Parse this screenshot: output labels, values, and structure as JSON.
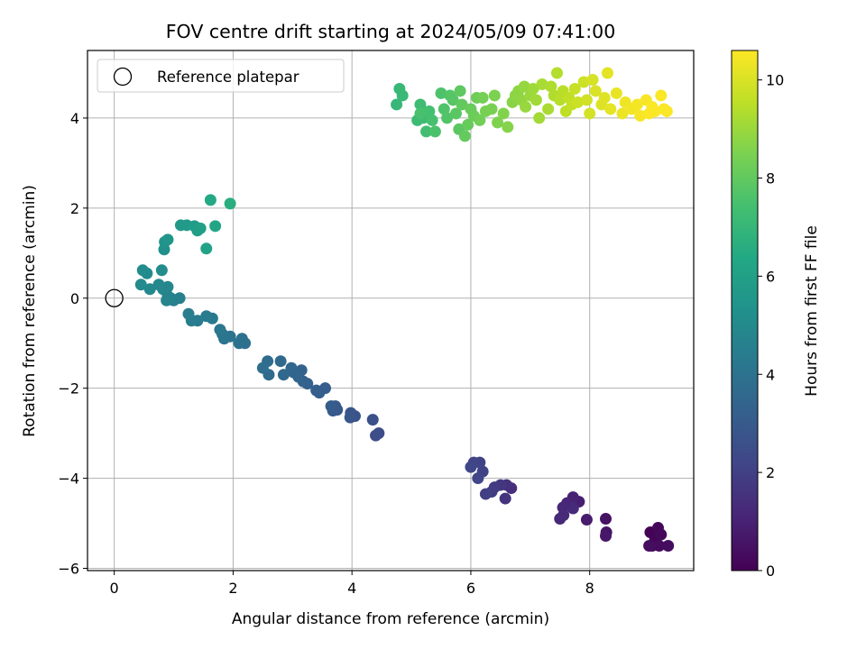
{
  "chart_data": {
    "type": "scatter",
    "title": "FOV centre drift starting at 2024/05/09 07:41:00",
    "xlabel": "Angular distance from reference (arcmin)",
    "ylabel": "Rotation from reference (arcmin)",
    "xlim": [
      -0.45,
      9.75
    ],
    "ylim": [
      -6.05,
      5.5
    ],
    "xticks": [
      0,
      2,
      4,
      6,
      8
    ],
    "yticks": [
      -6,
      -4,
      -2,
      0,
      2,
      4
    ],
    "grid": true,
    "legend": {
      "placement": "top-left",
      "entries": [
        "Reference platepar"
      ]
    },
    "reference_point": {
      "x": 0,
      "y": 0,
      "label": "Reference platepar"
    },
    "colorbar": {
      "label": "Hours from first FF file",
      "colormap": "viridis",
      "range": [
        0,
        10.6
      ],
      "ticks": [
        0,
        2,
        4,
        6,
        8,
        10
      ]
    },
    "series": [
      {
        "columns": [
          "x",
          "y",
          "hours"
        ],
        "points": [
          [
            9.02,
            -5.2,
            0.05
          ],
          [
            9.1,
            -5.35,
            0.1
          ],
          [
            9.15,
            -5.1,
            0.15
          ],
          [
            9.05,
            -5.5,
            0.2
          ],
          [
            9.2,
            -5.25,
            0.25
          ],
          [
            9.17,
            -5.5,
            0.3
          ],
          [
            9.32,
            -5.5,
            0.35
          ],
          [
            9.0,
            -5.5,
            0.4
          ],
          [
            8.27,
            -4.9,
            0.5
          ],
          [
            8.28,
            -5.2,
            0.6
          ],
          [
            8.27,
            -5.28,
            0.7
          ],
          [
            7.95,
            -4.92,
            0.8
          ],
          [
            7.82,
            -4.52,
            0.9
          ],
          [
            7.72,
            -4.42,
            1.0
          ],
          [
            7.7,
            -4.6,
            1.05
          ],
          [
            7.62,
            -4.55,
            1.1
          ],
          [
            7.55,
            -4.65,
            1.15
          ],
          [
            7.5,
            -4.9,
            1.2
          ],
          [
            7.56,
            -4.82,
            1.25
          ],
          [
            7.72,
            -4.67,
            1.3
          ],
          [
            6.68,
            -4.22,
            1.4
          ],
          [
            6.6,
            -4.15,
            1.5
          ],
          [
            6.58,
            -4.45,
            1.6
          ],
          [
            6.5,
            -4.15,
            1.7
          ],
          [
            6.4,
            -4.2,
            1.8
          ],
          [
            6.35,
            -4.3,
            1.9
          ],
          [
            6.25,
            -4.35,
            2.0
          ],
          [
            6.2,
            -3.85,
            2.05
          ],
          [
            6.15,
            -3.65,
            2.1
          ],
          [
            6.05,
            -3.65,
            2.15
          ],
          [
            6.12,
            -4.0,
            2.2
          ],
          [
            6.0,
            -3.75,
            2.25
          ],
          [
            4.45,
            -3.0,
            2.4
          ],
          [
            4.4,
            -3.05,
            2.5
          ],
          [
            4.35,
            -2.7,
            2.6
          ],
          [
            4.05,
            -2.62,
            2.7
          ],
          [
            3.98,
            -2.55,
            2.8
          ],
          [
            3.97,
            -2.65,
            2.85
          ],
          [
            3.75,
            -2.48,
            2.9
          ],
          [
            3.72,
            -2.4,
            2.95
          ],
          [
            3.68,
            -2.5,
            3.0
          ],
          [
            3.65,
            -2.4,
            3.05
          ],
          [
            3.55,
            -2.0,
            3.1
          ],
          [
            3.45,
            -2.1,
            3.15
          ],
          [
            3.4,
            -2.05,
            3.2
          ],
          [
            3.25,
            -1.9,
            3.25
          ],
          [
            3.18,
            -1.85,
            3.3
          ],
          [
            3.15,
            -1.6,
            3.35
          ],
          [
            3.1,
            -1.75,
            3.4
          ],
          [
            3.02,
            -1.65,
            3.45
          ],
          [
            2.98,
            -1.55,
            3.5
          ],
          [
            2.85,
            -1.7,
            3.55
          ],
          [
            2.8,
            -1.4,
            3.6
          ],
          [
            2.6,
            -1.7,
            3.7
          ],
          [
            2.58,
            -1.4,
            3.75
          ],
          [
            2.5,
            -1.55,
            3.8
          ],
          [
            2.2,
            -1.0,
            3.9
          ],
          [
            2.15,
            -0.9,
            3.95
          ],
          [
            2.1,
            -1.0,
            4.0
          ],
          [
            1.95,
            -0.85,
            4.05
          ],
          [
            1.85,
            -0.9,
            4.1
          ],
          [
            1.82,
            -0.8,
            4.15
          ],
          [
            1.78,
            -0.7,
            4.2
          ],
          [
            1.65,
            -0.45,
            4.3
          ],
          [
            1.55,
            -0.4,
            4.35
          ],
          [
            1.4,
            -0.5,
            4.4
          ],
          [
            1.3,
            -0.5,
            4.45
          ],
          [
            1.25,
            -0.35,
            4.5
          ],
          [
            1.1,
            0.0,
            4.55
          ],
          [
            1.0,
            -0.05,
            4.6
          ],
          [
            0.95,
            0.0,
            4.65
          ],
          [
            0.9,
            0.05,
            4.7
          ],
          [
            0.88,
            -0.05,
            4.75
          ],
          [
            0.82,
            0.2,
            4.8
          ],
          [
            0.9,
            0.25,
            4.85
          ],
          [
            0.75,
            0.3,
            4.9
          ],
          [
            0.6,
            0.2,
            4.95
          ],
          [
            0.45,
            0.3,
            5.0
          ],
          [
            0.55,
            0.55,
            5.05
          ],
          [
            0.48,
            0.62,
            5.1
          ],
          [
            0.8,
            0.62,
            5.15
          ],
          [
            0.84,
            1.08,
            5.3
          ],
          [
            0.85,
            1.25,
            5.4
          ],
          [
            0.9,
            1.3,
            5.5
          ],
          [
            1.12,
            1.62,
            5.6
          ],
          [
            1.22,
            1.62,
            5.7
          ],
          [
            1.35,
            1.6,
            5.8
          ],
          [
            1.4,
            1.5,
            5.9
          ],
          [
            1.45,
            1.55,
            6.0
          ],
          [
            1.55,
            1.1,
            6.1
          ],
          [
            1.7,
            1.6,
            6.2
          ],
          [
            1.62,
            2.18,
            6.4
          ],
          [
            1.95,
            2.1,
            6.6
          ],
          [
            4.75,
            4.3,
            7.0
          ],
          [
            4.8,
            4.65,
            7.05
          ],
          [
            4.85,
            4.5,
            7.1
          ],
          [
            5.1,
            3.95,
            7.2
          ],
          [
            5.15,
            4.3,
            7.25
          ],
          [
            5.2,
            4.0,
            7.3
          ],
          [
            5.25,
            3.7,
            7.35
          ],
          [
            5.3,
            4.15,
            7.4
          ],
          [
            5.35,
            3.95,
            7.45
          ],
          [
            5.15,
            4.1,
            7.5
          ],
          [
            5.4,
            3.7,
            7.55
          ],
          [
            5.5,
            4.55,
            7.6
          ],
          [
            5.55,
            4.2,
            7.65
          ],
          [
            5.6,
            4.0,
            7.7
          ],
          [
            5.65,
            4.5,
            7.75
          ],
          [
            5.7,
            4.4,
            7.8
          ],
          [
            5.75,
            4.1,
            7.85
          ],
          [
            5.8,
            3.75,
            7.9
          ],
          [
            5.82,
            4.6,
            7.95
          ],
          [
            5.85,
            4.3,
            8.0
          ],
          [
            5.9,
            3.6,
            8.05
          ],
          [
            5.95,
            3.85,
            8.1
          ],
          [
            6.0,
            4.2,
            8.15
          ],
          [
            6.05,
            4.05,
            8.2
          ],
          [
            6.1,
            4.45,
            8.25
          ],
          [
            6.15,
            3.95,
            8.3
          ],
          [
            6.2,
            4.45,
            8.35
          ],
          [
            6.25,
            4.15,
            8.4
          ],
          [
            6.35,
            4.2,
            8.45
          ],
          [
            6.4,
            4.5,
            8.5
          ],
          [
            6.45,
            3.9,
            8.55
          ],
          [
            6.55,
            4.1,
            8.6
          ],
          [
            6.62,
            3.8,
            8.65
          ],
          [
            6.7,
            4.35,
            8.7
          ],
          [
            6.75,
            4.5,
            8.75
          ],
          [
            6.8,
            4.6,
            8.8
          ],
          [
            6.85,
            4.4,
            8.85
          ],
          [
            6.9,
            4.7,
            8.9
          ],
          [
            6.92,
            4.25,
            8.95
          ],
          [
            7.0,
            4.5,
            9.0
          ],
          [
            7.05,
            4.65,
            9.05
          ],
          [
            7.1,
            4.4,
            9.1
          ],
          [
            7.15,
            4.0,
            9.15
          ],
          [
            7.2,
            4.75,
            9.2
          ],
          [
            7.3,
            4.2,
            9.25
          ],
          [
            7.35,
            4.7,
            9.3
          ],
          [
            7.4,
            4.5,
            9.35
          ],
          [
            7.45,
            5.0,
            9.4
          ],
          [
            7.5,
            4.4,
            9.45
          ],
          [
            7.55,
            4.6,
            9.5
          ],
          [
            7.6,
            4.15,
            9.55
          ],
          [
            7.65,
            4.45,
            9.6
          ],
          [
            7.7,
            4.3,
            9.65
          ],
          [
            7.75,
            4.65,
            9.7
          ],
          [
            7.8,
            4.35,
            9.75
          ],
          [
            7.9,
            4.8,
            9.8
          ],
          [
            7.95,
            4.4,
            9.85
          ],
          [
            8.0,
            4.1,
            9.9
          ],
          [
            8.05,
            4.85,
            9.95
          ],
          [
            8.1,
            4.6,
            10.0
          ],
          [
            8.2,
            4.3,
            10.05
          ],
          [
            8.25,
            4.45,
            10.1
          ],
          [
            8.3,
            5.0,
            10.15
          ],
          [
            8.35,
            4.2,
            10.2
          ],
          [
            8.45,
            4.55,
            10.25
          ],
          [
            8.55,
            4.1,
            10.3
          ],
          [
            8.6,
            4.35,
            10.35
          ],
          [
            8.7,
            4.2,
            10.4
          ],
          [
            8.8,
            4.3,
            10.45
          ],
          [
            8.85,
            4.05,
            10.5
          ],
          [
            8.95,
            4.4,
            10.5
          ],
          [
            9.0,
            4.1,
            10.55
          ],
          [
            9.05,
            4.25,
            10.55
          ],
          [
            9.1,
            4.15,
            10.55
          ],
          [
            9.2,
            4.5,
            10.55
          ],
          [
            9.25,
            4.2,
            10.55
          ],
          [
            9.3,
            4.15,
            10.55
          ]
        ]
      }
    ]
  }
}
